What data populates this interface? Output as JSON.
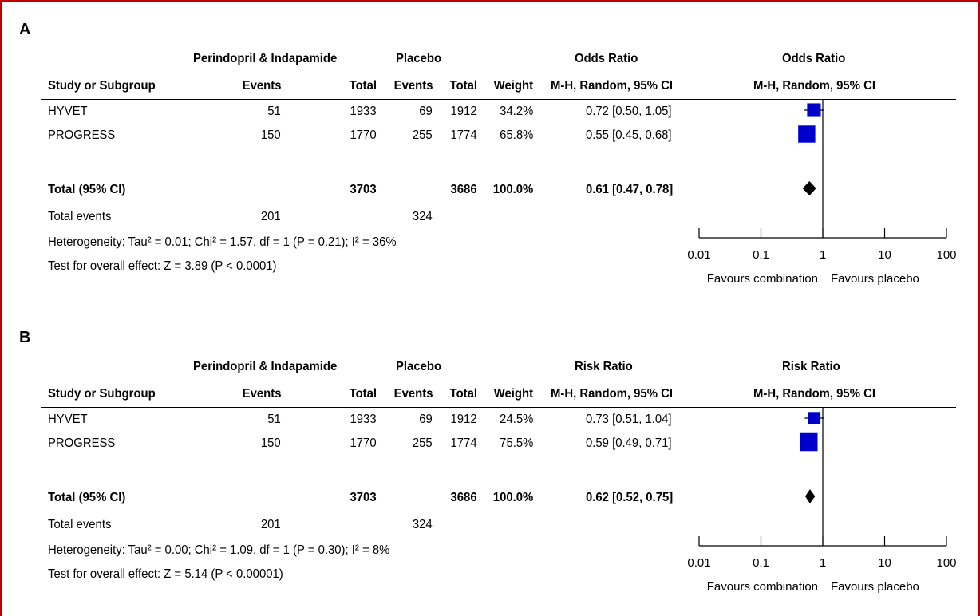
{
  "chart_data": [
    {
      "type": "forest",
      "panel_label": "A",
      "group_headers": {
        "experimental": "Perindopril & Indapamide",
        "control": "Placebo"
      },
      "measure_header": "Odds Ratio",
      "method": "M-H, Random, 95% CI",
      "column_headers": {
        "study": "Study or Subgroup",
        "events": "Events",
        "total": "Total",
        "ctrl_events": "Events",
        "ctrl_total": "Total",
        "weight": "Weight"
      },
      "studies": [
        {
          "name": "HYVET",
          "exp_events": "51",
          "exp_total": "1933",
          "ctrl_events": "69",
          "ctrl_total": "1912",
          "weight": "34.2%",
          "ci_text": "0.72 [0.50, 1.05]",
          "est": 0.72,
          "lo": 0.5,
          "hi": 1.05,
          "w": 34.2
        },
        {
          "name": "PROGRESS",
          "exp_events": "150",
          "exp_total": "1770",
          "ctrl_events": "255",
          "ctrl_total": "1774",
          "weight": "65.8%",
          "ci_text": "0.55 [0.45, 0.68]",
          "est": 0.55,
          "lo": 0.45,
          "hi": 0.68,
          "w": 65.8
        }
      ],
      "total": {
        "label": "Total (95% CI)",
        "exp_total": "3703",
        "ctrl_total": "3686",
        "weight": "100.0%",
        "ci_text": "0.61 [0.47, 0.78]",
        "est": 0.61,
        "lo": 0.47,
        "hi": 0.78
      },
      "total_events": {
        "label": "Total events",
        "exp": "201",
        "ctrl": "324"
      },
      "heterogeneity": "Heterogeneity: Tau² = 0.01; Chi² = 1.57, df = 1 (P = 0.21); I² = 36%",
      "overall_effect": "Test for overall effect: Z = 3.89 (P < 0.0001)",
      "axis": {
        "scale": "log",
        "ticks": [
          0.01,
          0.1,
          1,
          10,
          100
        ],
        "tick_labels": [
          "0.01",
          "0.1",
          "1",
          "10",
          "100"
        ]
      },
      "favours_left": "Favours combination",
      "favours_right": "Favours placebo"
    },
    {
      "type": "forest",
      "panel_label": "B",
      "group_headers": {
        "experimental": "Perindopril & Indapamide",
        "control": "Placebo"
      },
      "measure_header": "Risk Ratio",
      "method": "M-H, Random, 95% CI",
      "column_headers": {
        "study": "Study or Subgroup",
        "events": "Events",
        "total": "Total",
        "ctrl_events": "Events",
        "ctrl_total": "Total",
        "weight": "Weight"
      },
      "studies": [
        {
          "name": "HYVET",
          "exp_events": "51",
          "exp_total": "1933",
          "ctrl_events": "69",
          "ctrl_total": "1912",
          "weight": "24.5%",
          "ci_text": "0.73 [0.51, 1.04]",
          "est": 0.73,
          "lo": 0.51,
          "hi": 1.04,
          "w": 24.5
        },
        {
          "name": "PROGRESS",
          "exp_events": "150",
          "exp_total": "1770",
          "ctrl_events": "255",
          "ctrl_total": "1774",
          "weight": "75.5%",
          "ci_text": "0.59 [0.49, 0.71]",
          "est": 0.59,
          "lo": 0.49,
          "hi": 0.71,
          "w": 75.5
        }
      ],
      "total": {
        "label": "Total (95% CI)",
        "exp_total": "3703",
        "ctrl_total": "3686",
        "weight": "100.0%",
        "ci_text": "0.62 [0.52, 0.75]",
        "est": 0.62,
        "lo": 0.52,
        "hi": 0.75
      },
      "total_events": {
        "label": "Total events",
        "exp": "201",
        "ctrl": "324"
      },
      "heterogeneity": "Heterogeneity: Tau² = 0.00; Chi² = 1.09, df = 1 (P = 0.30); I² = 8%",
      "overall_effect": "Test for overall effect: Z = 5.14 (P < 0.00001)",
      "axis": {
        "scale": "log",
        "ticks": [
          0.01,
          0.1,
          1,
          10,
          100
        ],
        "tick_labels": [
          "0.01",
          "0.1",
          "1",
          "10",
          "100"
        ]
      },
      "favours_left": "Favours combination",
      "favours_right": "Favours placebo"
    }
  ],
  "colors": {
    "frame": "#c00000",
    "study_marker": "#0000cc",
    "summary_marker": "#000000"
  }
}
